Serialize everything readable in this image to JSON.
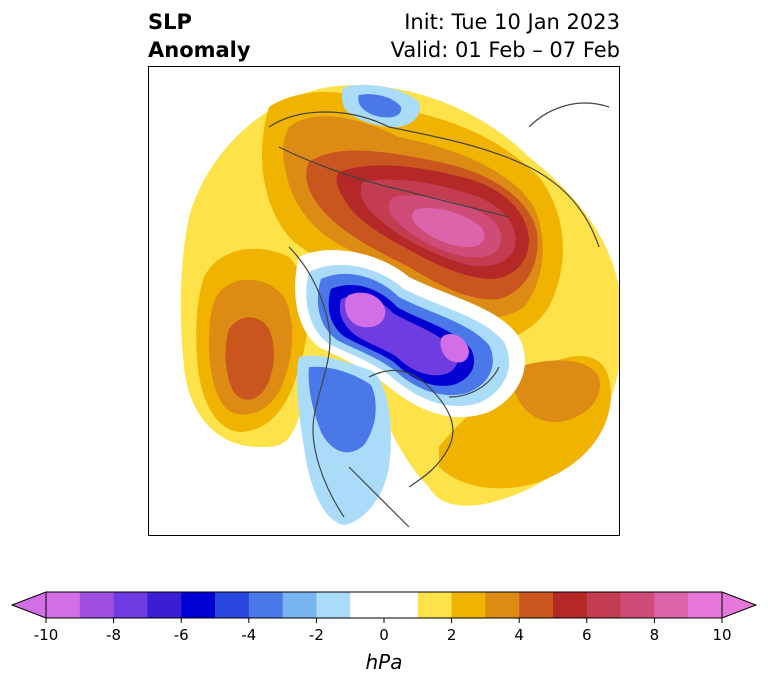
{
  "header": {
    "title_line1": "SLP",
    "title_line2": "Anomaly",
    "init": "Init: Tue 10 Jan 2023",
    "valid": "Valid: 01 Feb – 07 Feb"
  },
  "colorbar": {
    "unit": "hPa",
    "ticks": [
      "-10",
      "-8",
      "-6",
      "-4",
      "-2",
      "0",
      "2",
      "4",
      "6",
      "8",
      "10"
    ],
    "bins": [
      {
        "range": [
          -10,
          -9
        ],
        "color": "#d26ee6"
      },
      {
        "range": [
          -9,
          -8
        ],
        "color": "#a050e0"
      },
      {
        "range": [
          -8,
          -7
        ],
        "color": "#6e3ce0"
      },
      {
        "range": [
          -7,
          -6
        ],
        "color": "#3c1ed2"
      },
      {
        "range": [
          -6,
          -5
        ],
        "color": "#0000d2"
      },
      {
        "range": [
          -5,
          -4
        ],
        "color": "#2846dc"
      },
      {
        "range": [
          -4,
          -3
        ],
        "color": "#4a78e8"
      },
      {
        "range": [
          -3,
          -2
        ],
        "color": "#78b4f0"
      },
      {
        "range": [
          -2,
          -1
        ],
        "color": "#aadcfa"
      },
      {
        "range": [
          -1,
          1
        ],
        "color": "#ffffff"
      },
      {
        "range": [
          1,
          2
        ],
        "color": "#fde24a"
      },
      {
        "range": [
          2,
          3
        ],
        "color": "#f0b400"
      },
      {
        "range": [
          3,
          4
        ],
        "color": "#dc8c14"
      },
      {
        "range": [
          4,
          5
        ],
        "color": "#c8561e"
      },
      {
        "range": [
          5,
          6
        ],
        "color": "#b42828"
      },
      {
        "range": [
          6,
          7
        ],
        "color": "#c43c50"
      },
      {
        "range": [
          7,
          8
        ],
        "color": "#d04c78"
      },
      {
        "range": [
          8,
          9
        ],
        "color": "#dc64aa"
      },
      {
        "range": [
          9,
          10
        ],
        "color": "#e678dc"
      }
    ],
    "under_color": "#d26ee6",
    "over_color": "#e678dc"
  },
  "map": {
    "projection": "polar-stereographic",
    "colors": {
      "coast": "#444444"
    }
  }
}
